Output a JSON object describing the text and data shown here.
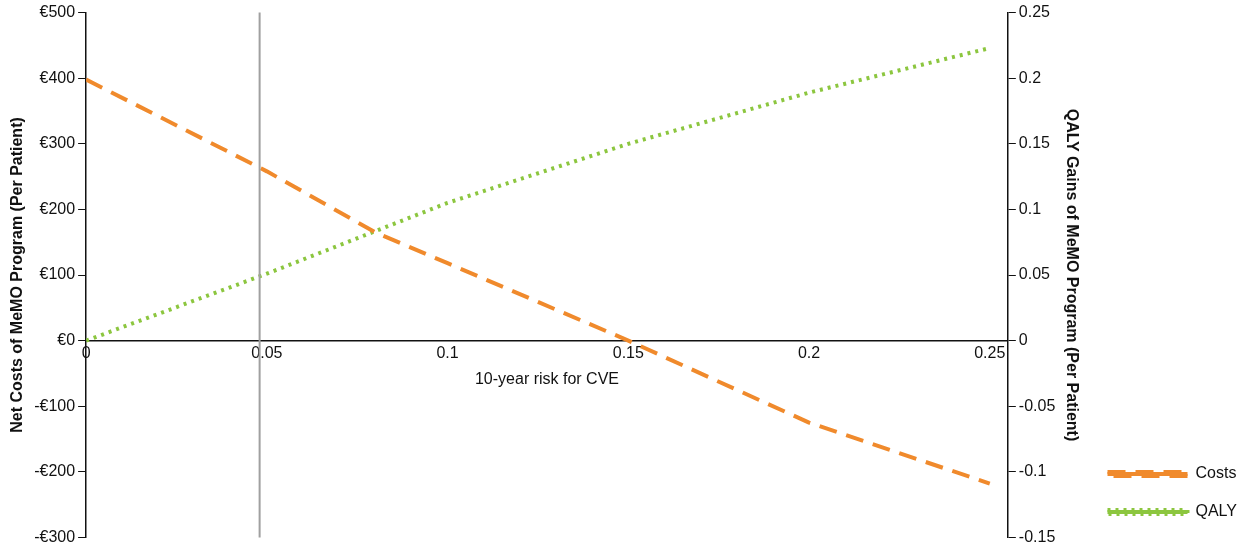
{
  "chart_data": {
    "type": "line",
    "xlabel": "10-year risk for CVE",
    "ylabel": "Net Costs of MeMO Program (Per Patient)",
    "y2label": "QALY Gains of MeMO Program (Per Patient)",
    "series": [
      {
        "name": "Costs",
        "color": "#f08a2c",
        "line_style": "dashed",
        "x": [
          0,
          0.05,
          0.08,
          0.1,
          0.15,
          0.2,
          0.25
        ],
        "values": [
          398,
          258,
          165,
          118,
          0,
          -125,
          -218
        ]
      },
      {
        "name": "QALY",
        "color": "#8cc63f",
        "line_style": "dotted",
        "axis": "y2",
        "x": [
          0,
          0.05,
          0.1,
          0.15,
          0.2,
          0.25
        ],
        "values": [
          0,
          0.051,
          0.105,
          0.15,
          0.189,
          0.223
        ]
      }
    ],
    "xlim": [
      0,
      0.255
    ],
    "xticks": [
      0,
      0.05,
      0.1,
      0.15,
      0.2,
      0.25
    ],
    "ylim": [
      -300,
      500
    ],
    "yticks": [
      {
        "value": -300,
        "label": "-€300"
      },
      {
        "value": -200,
        "label": "-€200"
      },
      {
        "value": -100,
        "label": "-€100"
      },
      {
        "value": 0,
        "label": "€0"
      },
      {
        "value": 100,
        "label": "€100"
      },
      {
        "value": 200,
        "label": "€200"
      },
      {
        "value": 300,
        "label": "€300"
      },
      {
        "value": 400,
        "label": "€400"
      },
      {
        "value": 500,
        "label": "€500"
      }
    ],
    "y2lim": [
      -0.15,
      0.25
    ],
    "y2ticks": [
      -0.15,
      -0.1,
      -0.05,
      0,
      0.05,
      0.1,
      0.15,
      0.2,
      0.25
    ],
    "ref_lines": [
      {
        "axis": "x",
        "value": 0.048,
        "color": "#a0a0a0",
        "line_style": "solid"
      }
    ],
    "grid": false,
    "legend": "bottom right",
    "marker": "none"
  }
}
